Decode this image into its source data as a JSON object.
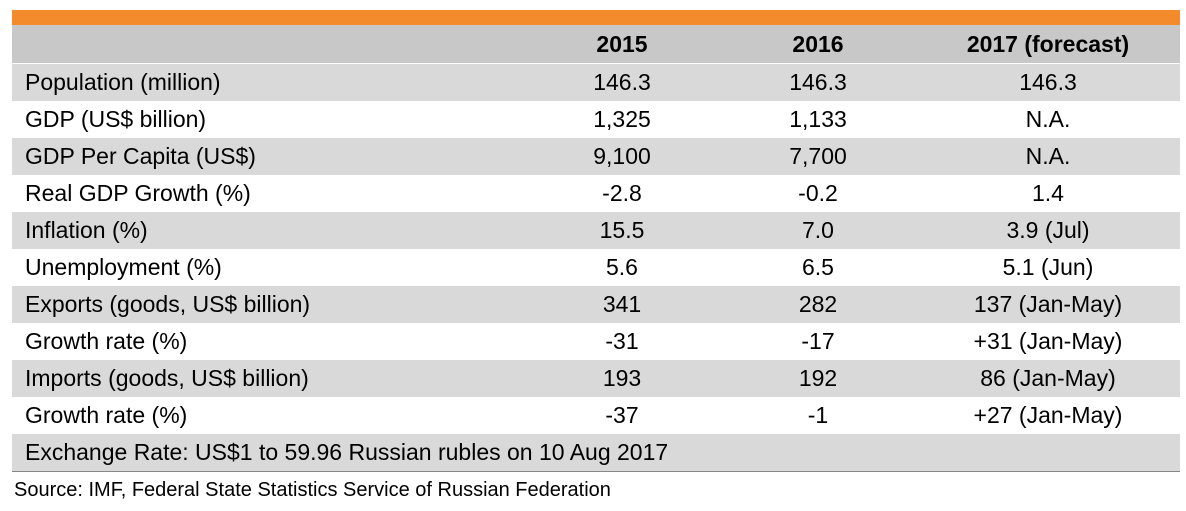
{
  "chart_data": {
    "type": "table",
    "columns": [
      "",
      "2015",
      "2016",
      "2017 (forecast)"
    ],
    "rows": [
      [
        "Population (million)",
        "146.3",
        "146.3",
        "146.3"
      ],
      [
        "GDP (US$ billion)",
        "1,325",
        "1,133",
        "N.A."
      ],
      [
        "GDP Per Capita (US$)",
        "9,100",
        "7,700",
        "N.A."
      ],
      [
        "Real GDP Growth (%)",
        "-2.8",
        "-0.2",
        "1.4"
      ],
      [
        "Inflation (%)",
        "15.5",
        "7.0",
        "3.9 (Jul)"
      ],
      [
        "Unemployment (%)",
        "5.6",
        "6.5",
        "5.1 (Jun)"
      ],
      [
        "Exports (goods, US$ billion)",
        "341",
        "282",
        "137 (Jan-May)"
      ],
      [
        "Growth rate (%)",
        "-31",
        "-17",
        "+31 (Jan-May)"
      ],
      [
        "Imports (goods, US$ billion)",
        "193",
        "192",
        "86 (Jan-May)"
      ],
      [
        "Growth rate (%)",
        "-37",
        "-1",
        "+27 (Jan-May)"
      ]
    ],
    "footer_note": "Exchange Rate: US$1 to 59.96 Russian rubles on 10 Aug 2017",
    "source": "Source: IMF, Federal State Statistics Service of Russian Federation"
  },
  "colors": {
    "accent_bar": "#F38B2C",
    "header_bg": "#C8C8C8",
    "stripe_bg": "#D9D9D9"
  }
}
